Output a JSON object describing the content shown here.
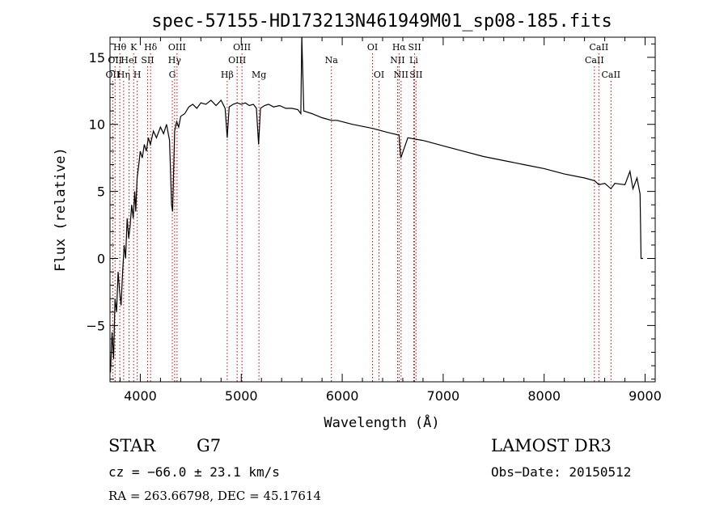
{
  "chart_data": {
    "type": "line",
    "title": "spec-57155-HD173213N461949M01_sp08-185.fits",
    "xlabel": "Wavelength (Å)",
    "ylabel": "Flux (relative)",
    "xlim": [
      3700,
      9100
    ],
    "ylim": [
      -9.2,
      16.5
    ],
    "x_ticks": [
      4000,
      5000,
      6000,
      7000,
      8000,
      9000
    ],
    "x_tick_labels": [
      "4000",
      "5000",
      "6000",
      "7000",
      "8000",
      "9000"
    ],
    "y_ticks": [
      -5,
      0,
      5,
      10,
      15
    ],
    "y_tick_labels": [
      "−5",
      "0",
      "5",
      "10",
      "15"
    ],
    "grid": false,
    "series": [
      {
        "name": "",
        "color": "#000000",
        "x": [
          3705,
          3720,
          3735,
          3750,
          3765,
          3780,
          3795,
          3810,
          3825,
          3840,
          3855,
          3870,
          3885,
          3900,
          3915,
          3930,
          3945,
          3955,
          3968,
          3985,
          4000,
          4020,
          4040,
          4060,
          4080,
          4100,
          4130,
          4160,
          4200,
          4230,
          4260,
          4290,
          4310,
          4320,
          4340,
          4360,
          4380,
          4400,
          4440,
          4480,
          4520,
          4560,
          4600,
          4650,
          4700,
          4750,
          4800,
          4840,
          4861,
          4880,
          4920,
          4960,
          5000,
          5040,
          5080,
          5120,
          5150,
          5172,
          5190,
          5230,
          5270,
          5320,
          5380,
          5440,
          5500,
          5560,
          5590,
          5600,
          5620,
          5700,
          5800,
          5893,
          5950,
          6100,
          6300,
          6450,
          6563,
          6580,
          6650,
          6800,
          7000,
          7200,
          7400,
          7600,
          7800,
          8000,
          8200,
          8400,
          8500,
          8542,
          8600,
          8662,
          8700,
          8800,
          8850,
          8880,
          8920,
          8950,
          8960,
          8980
        ],
        "y": [
          -8.5,
          -5.5,
          -7.5,
          -3,
          -4,
          -1,
          -2.5,
          -3.5,
          -1,
          1,
          0,
          3,
          1.5,
          2.5,
          4,
          3,
          5,
          3.5,
          6,
          7,
          8,
          7.5,
          8.5,
          8,
          9,
          8.5,
          9.5,
          9,
          9.8,
          9.3,
          10,
          8.8,
          4,
          3.5,
          9.5,
          10.2,
          9.8,
          10.6,
          10.8,
          11.3,
          11.5,
          11.2,
          11.6,
          11.5,
          11.8,
          11.4,
          11.8,
          11.2,
          9,
          11.3,
          11.5,
          11.6,
          11.5,
          11.6,
          11.4,
          11.5,
          11.2,
          8.5,
          11.2,
          11.4,
          11.5,
          11.3,
          11.4,
          11.2,
          11.2,
          11.1,
          10.8,
          16.5,
          11,
          10.8,
          10.5,
          10.3,
          10.3,
          10,
          9.7,
          9.4,
          9.2,
          7.5,
          9,
          8.8,
          8.4,
          8,
          7.6,
          7.3,
          7,
          6.7,
          6.3,
          6,
          5.8,
          5.5,
          5.6,
          5.2,
          5.6,
          5.5,
          6.5,
          5.2,
          6,
          4.8,
          0,
          0
        ]
      }
    ],
    "line_markers": [
      {
        "wl": 3727,
        "label": "OII",
        "row": 3
      },
      {
        "wl": 3750,
        "label": "OII",
        "row": 2
      },
      {
        "wl": 3797,
        "label": "Hθ",
        "row": 1
      },
      {
        "wl": 3835,
        "label": "Hη",
        "row": 3
      },
      {
        "wl": 3889,
        "label": "HeI",
        "row": 2
      },
      {
        "wl": 3934,
        "label": "K",
        "row": 1
      },
      {
        "wl": 3970,
        "label": "H",
        "row": 3
      },
      {
        "wl": 4072,
        "label": "SII",
        "row": 2
      },
      {
        "wl": 4102,
        "label": "Hδ",
        "row": 1
      },
      {
        "wl": 4317,
        "label": "G",
        "row": 3
      },
      {
        "wl": 4340,
        "label": "Hγ",
        "row": 2
      },
      {
        "wl": 4364,
        "label": "OIII",
        "row": 1
      },
      {
        "wl": 4861,
        "label": "Hβ",
        "row": 3
      },
      {
        "wl": 4959,
        "label": "OIII",
        "row": 2
      },
      {
        "wl": 5007,
        "label": "OIII",
        "row": 1
      },
      {
        "wl": 5175,
        "label": "Mg",
        "row": 3
      },
      {
        "wl": 5893,
        "label": "Na",
        "row": 2
      },
      {
        "wl": 6300,
        "label": "OI",
        "row": 1
      },
      {
        "wl": 6364,
        "label": "OI",
        "row": 3
      },
      {
        "wl": 6548,
        "label": "NII",
        "row": 2
      },
      {
        "wl": 6563,
        "label": "Hα",
        "row": 1
      },
      {
        "wl": 6583,
        "label": "NII",
        "row": 3
      },
      {
        "wl": 6708,
        "label": "Li",
        "row": 2
      },
      {
        "wl": 6717,
        "label": "SII",
        "row": 1
      },
      {
        "wl": 6731,
        "label": "SII",
        "row": 3
      },
      {
        "wl": 8498,
        "label": "CaII",
        "row": 2
      },
      {
        "wl": 8542,
        "label": "CaII",
        "row": 1
      },
      {
        "wl": 8662,
        "label": "CaII",
        "row": 3
      }
    ]
  },
  "info": {
    "object_class": "STAR",
    "subclass": "G7",
    "survey": "LAMOST DR3",
    "redshift": "cz = −66.0 ± 23.1 km/s",
    "obs_date": "Obs−Date: 20150512",
    "coords": "RA = 263.66798, DEC =  45.17614"
  },
  "colors": {
    "spectrum": "#000000",
    "line_marker": "#cc0000",
    "axes": "#000000",
    "background": "#ffffff"
  }
}
